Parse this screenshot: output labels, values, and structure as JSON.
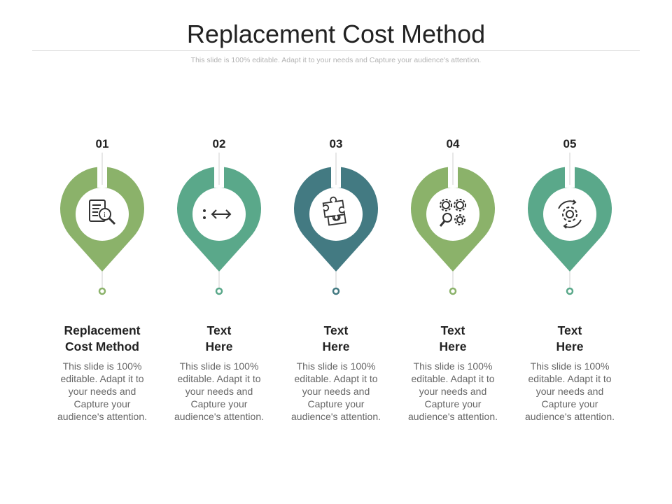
{
  "title": "Replacement  Cost Method",
  "subtitle": "This slide is 100% editable. Adapt it to your needs and Capture your audience's attention.",
  "steps": [
    {
      "number": "01",
      "title_line1": "Replacement",
      "title_line2": "Cost Method",
      "description": "This slide is 100% editable. Adapt it to your needs and Capture your audience's attention.",
      "color": "#8bb26a",
      "icon": "document-search-icon"
    },
    {
      "number": "02",
      "title_line1": "Text",
      "title_line2": "Here",
      "description": "This slide is 100% editable. Adapt it to your needs and Capture your audience's attention.",
      "color": "#5aa88a",
      "icon": "double-arrow-icon"
    },
    {
      "number": "03",
      "title_line1": "Text",
      "title_line2": "Here",
      "description": "This slide is 100% editable. Adapt it to your needs and Capture your audience's attention.",
      "color": "#437a82",
      "icon": "puzzle-icon"
    },
    {
      "number": "04",
      "title_line1": "Text",
      "title_line2": "Here",
      "description": "This slide is 100% editable. Adapt it to your needs and Capture your audience's attention.",
      "color": "#8bb26a",
      "icon": "gears-search-icon"
    },
    {
      "number": "05",
      "title_line1": "Text",
      "title_line2": "Here",
      "description": "This slide is 100% editable. Adapt it to your needs and Capture your audience's attention.",
      "color": "#5aa88a",
      "icon": "gear-cycle-icon"
    }
  ]
}
